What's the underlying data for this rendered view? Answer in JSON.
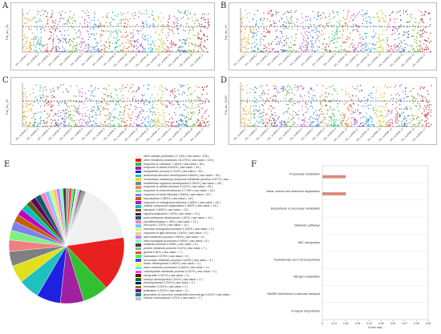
{
  "panels": {
    "A": {
      "letter": "A",
      "ylabel": "Fst_AL_SL"
    },
    "B": {
      "letter": "B",
      "ylabel": "Fst_AL_SI"
    },
    "C": {
      "letter": "C",
      "ylabel": "Fst_SL_SI"
    },
    "D": {
      "letter": "D",
      "ylabel": "Fst_AL_SLSI"
    },
    "E": {
      "letter": "E"
    },
    "F": {
      "letter": "F"
    }
  },
  "manhattan_x_labels": [
    "HiC_scaffold_1",
    "HiC_scaffold_2",
    "HiC_scaffold_3",
    "HiC_scaffold_4",
    "HiC_scaffold_5",
    "HiC_scaffold_6",
    "HiC_scaffold_7",
    "HiC_scaffold_8",
    "HiC_scaffold_9",
    "HiC_scaffold_10",
    "HiC_scaffold_11",
    "HiC_scaffold_12",
    "HiC_scaffold_13",
    "HiC_scaffold_14",
    "HiC_scaffold_15",
    "HiC_scaffold_16",
    "HiC_scaffold_17"
  ],
  "manhattan_colors": [
    "#e0a020",
    "#2fa0a0",
    "#d04040",
    "#6060c0",
    "#60a040",
    "#c060c0",
    "#4080e0",
    "#a08040",
    "#30c070",
    "#e07030",
    "#9050c0",
    "#30a0d0",
    "#c0c020",
    "#d05080",
    "#3070a0",
    "#80b030",
    "#c03030"
  ],
  "chart_data": [
    {
      "type": "pie",
      "title": "",
      "categories": [
        "other cellular processes 17.13% ( raw value = 106 )",
        "other metabolic processes 15.270% ( raw value = 102 )",
        "response to chemical 7.262% ( raw value = 60 )",
        "response to stress 6.603% ( raw value = 39 )",
        "biosynthetic process 6.712% ( raw value = 39 )",
        "anatomical structure development 5.864% ( raw value = 40 )",
        "nucleobase-containing compound metabolic process 4.977% ( raw ...",
        "multicellular organism development 4.163% ( raw value = 28 )",
        "response to abiotic stimulus 3.241% ( raw value = 26 )",
        "response to external stimulus 2.778% ( raw value = 18 )",
        "response to biotic stimulus 2.546% ( raw value = 22 )",
        "reproduction 2.083% ( raw value = 18 )",
        "response to endogenous stimulus 1.852% ( raw value = 16 )",
        "cellular component organization 1.852% ( raw value = 16 )",
        "transport 1.509% ( raw value = 13 )",
        "signal transduction 1.62% ( raw value = 14 )",
        "post-embryonic development 1.62% ( raw value = 14 )",
        "cell differentiation 1.39% ( raw value = 12 )",
        "cell cycle 1.157% ( raw value = 10 )",
        "unknown biological processes 1.042% ( raw value = 9 )",
        "response to light stimulus 1.042% ( raw value = 9 )",
        "lipid metabolic process 0.926% ( raw value = 8 )",
        "other biological processes 0.926% ( raw value = 8 )",
        "catabolic process 0.926% ( raw value = 8 )",
        "protein metabolic process 0.81% ( raw value = 7 )",
        "growth 0.81% ( raw value = 7 )",
        "translation 0.579% ( raw value = 5 )",
        "secondary metabolic process 0.463% ( raw value = 4 )",
        "flower development 0.463% ( raw value = 4 )",
        "other metabolic processes 0.463% ( raw value = 4 )",
        "carbohydrate metabolic process 0.347% ( raw value = 3 )",
        "cell growth 0.347% ( raw value = 3 )",
        "embryo development 0.231% ( raw value = 2 )",
        "photosynthesis 0.231% ( raw value = 2 )",
        "cell death 0.231% ( raw value = 2 )",
        "pollination 0.231% ( raw value = 2 )",
        "generation of precursor metabolites and energy 0.231% ( raw value ...",
        "cellular homeostasis 0.231% ( raw value = 2 )"
      ],
      "values": [
        17.13,
        15.27,
        7.262,
        6.603,
        6.712,
        5.864,
        4.977,
        4.163,
        3.241,
        2.778,
        2.546,
        2.083,
        1.852,
        1.852,
        1.509,
        1.62,
        1.62,
        1.39,
        1.157,
        1.042,
        1.042,
        0.926,
        0.926,
        0.926,
        0.81,
        0.81,
        0.579,
        0.463,
        0.463,
        0.463,
        0.347,
        0.347,
        0.231,
        0.231,
        0.231,
        0.231,
        0.231,
        0.231
      ],
      "colors": [
        "#f0f0f0",
        "#e82020",
        "#30c030",
        "#a020a0",
        "#2020e0",
        "#20c0c0",
        "#e0e020",
        "#808080",
        "#f08080",
        "#80f080",
        "#8080f0",
        "#c06000",
        "#c000c0",
        "#00c0c0",
        "#606000",
        "#600060",
        "#006060",
        "#ff80c0",
        "#80c0ff",
        "#c0ff80",
        "#ffc080",
        "#c080ff",
        "#80ffc0",
        "#404040",
        "#a0a0a0",
        "#ff4040",
        "#40ff40",
        "#4040ff",
        "#ffff40",
        "#40ffff",
        "#ff40ff",
        "#800000",
        "#008000",
        "#000080",
        "#808000",
        "#800080",
        "#008080",
        "#c0c0c0"
      ]
    },
    {
      "type": "bar",
      "title": "",
      "categories": [
        "Propanoate metabolism",
        "Valine, leucine and isoleucine degradation",
        "Biosynthesis of secondary metabolites",
        "Metabolic pathways",
        "ABC transporters",
        "Pantothenate and CoA biosynthesis",
        "Nitrogen metabolism",
        "SNARE interactions in vesicular transport",
        "N-Glycan biosynthesis"
      ],
      "values": [
        0.02,
        0.02,
        0.0,
        0.0,
        0.0,
        0.0,
        0.0,
        0.0,
        0.0
      ],
      "xlabel": "Enrich ratio",
      "xlim": [
        0,
        0.09
      ],
      "xticks": [
        "0",
        "0.01",
        "0.02",
        "0.03",
        "0.04",
        "0.05",
        "0.06",
        "0.07",
        "0.08",
        "0.09"
      ],
      "bar_color": "#d98a7a"
    }
  ]
}
